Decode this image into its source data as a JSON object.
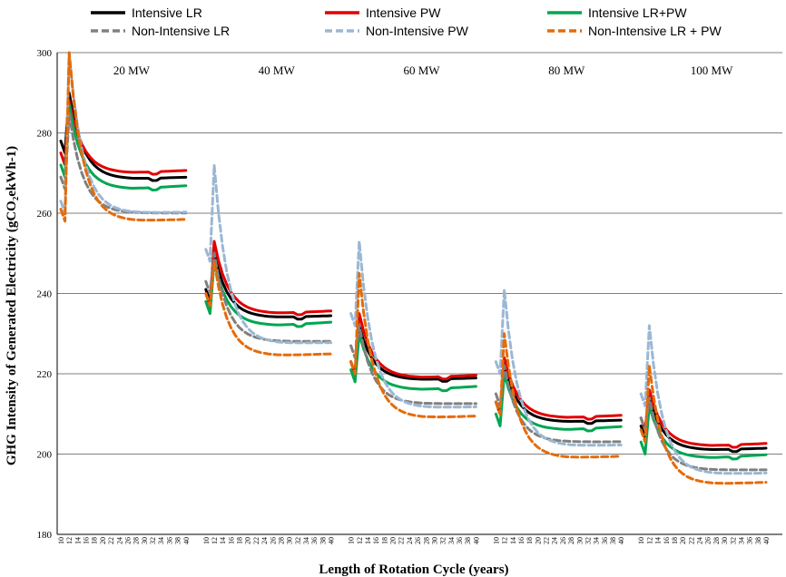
{
  "chart_data": {
    "type": "line",
    "xlabel": "Length of Rotation Cycle (years)",
    "ylabel": "GHG Intensity of Generated Electricity (gCO₂ekWh-1)",
    "ylim": [
      180,
      300
    ],
    "yticks": [
      "180",
      "200",
      "220",
      "240",
      "260",
      "280",
      "300"
    ],
    "grid": true,
    "legend_position": "top",
    "rotation_ticks": [
      "10",
      "11",
      "12",
      "13",
      "14",
      "15",
      "16",
      "17",
      "18",
      "19",
      "20",
      "21",
      "22",
      "23",
      "24",
      "25",
      "26",
      "27",
      "28",
      "29",
      "30",
      "31",
      "32",
      "33",
      "34",
      "35",
      "36",
      "37",
      "38",
      "39",
      "40"
    ],
    "panels": [
      {
        "label": "20 MW",
        "low": [
          275,
          272,
          269,
          266,
          260,
          258
        ],
        "high": [
          290,
          288,
          287,
          285,
          300,
          300
        ],
        "plateau": [
          268.5,
          270,
          266,
          260,
          260,
          258
        ]
      },
      {
        "label": "40 MW",
        "low": [
          238,
          237,
          235,
          240,
          248,
          237
        ],
        "high": [
          250,
          253,
          248,
          250,
          272,
          248
        ],
        "plateau": [
          234,
          235,
          232,
          228,
          227.5,
          224.5
        ]
      },
      {
        "label": "60 MW",
        "low": [
          220,
          220,
          218,
          224,
          232,
          220
        ],
        "high": [
          232,
          235,
          230,
          232,
          253,
          245
        ],
        "plateau": [
          218.5,
          219,
          216,
          212.5,
          211.5,
          209
        ]
      },
      {
        "label": "80 MW",
        "low": [
          210,
          210,
          207,
          212,
          220,
          210
        ],
        "high": [
          222,
          224,
          220,
          222,
          241,
          230
        ],
        "plateau": [
          208,
          209,
          206,
          203,
          202,
          199
        ]
      },
      {
        "label": "100 MW",
        "low": [
          204,
          206,
          200,
          206,
          212,
          203
        ],
        "high": [
          214,
          216,
          212,
          214,
          232,
          222
        ],
        "plateau": [
          201,
          202,
          199,
          196,
          195,
          192.5
        ]
      }
    ],
    "series": [
      {
        "name": "Intensive LR",
        "color": "#000000",
        "dash": "solid"
      },
      {
        "name": "Intensive PW",
        "color": "#e00000",
        "dash": "solid"
      },
      {
        "name": "Intensive LR+PW",
        "color": "#00a651",
        "dash": "solid"
      },
      {
        "name": "Non-Intensive LR",
        "color": "#808080",
        "dash": "dashed"
      },
      {
        "name": "Non-Intensive PW",
        "color": "#9bb7d4",
        "dash": "dashed"
      },
      {
        "name": "Non-Intensive LR + PW",
        "color": "#e46c0a",
        "dash": "dashed"
      }
    ]
  }
}
